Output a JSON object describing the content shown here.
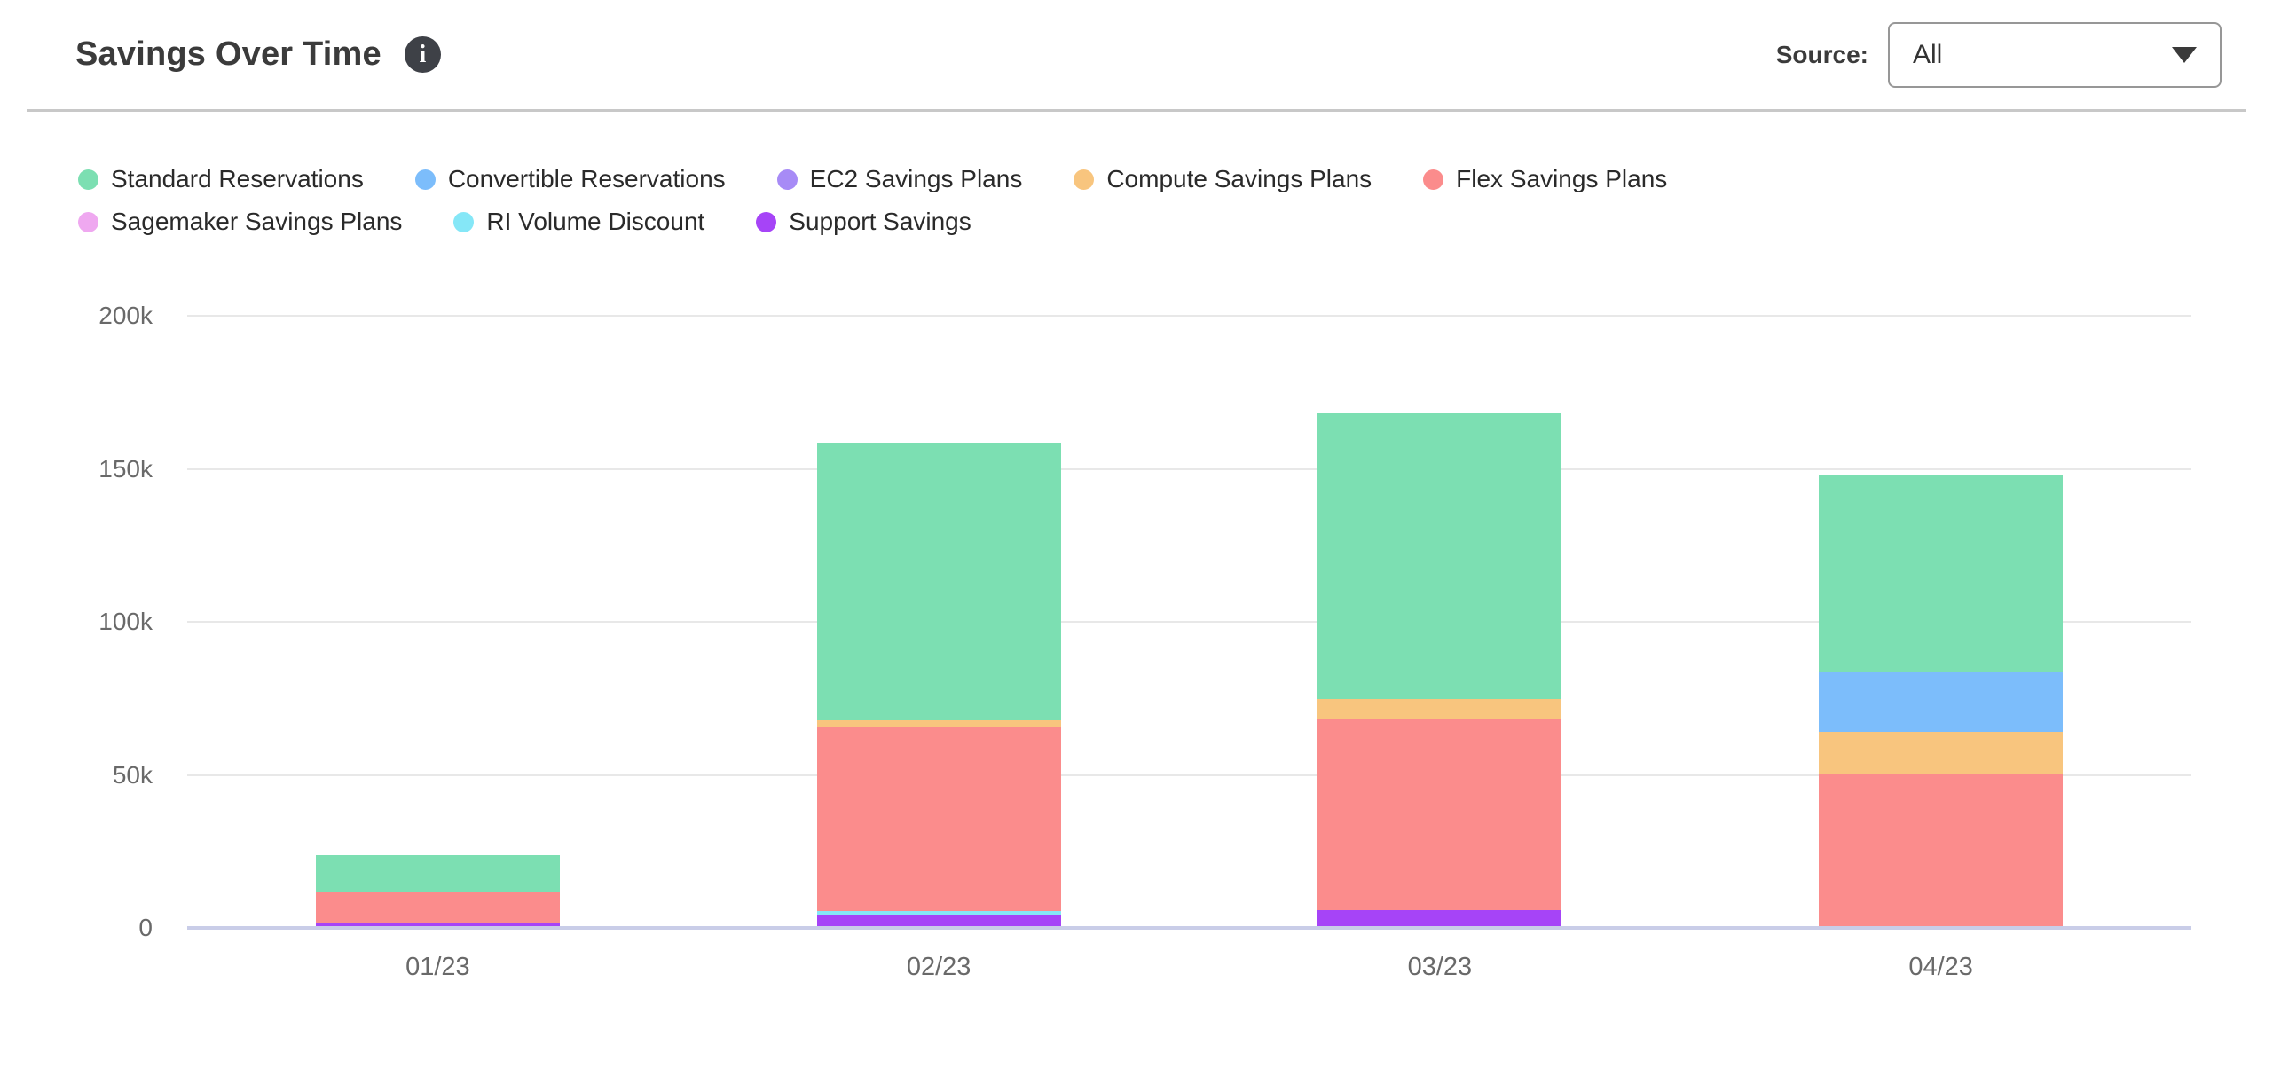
{
  "header": {
    "title": "Savings Over Time",
    "info_icon": "i",
    "source_label": "Source:",
    "source_value": "All"
  },
  "chart_data": {
    "type": "bar",
    "stacked": true,
    "title": "Savings Over Time",
    "unit": "thousands (k)",
    "categories": [
      "01/23",
      "02/23",
      "03/23",
      "04/23"
    ],
    "series": [
      {
        "name": "Standard Reservations",
        "color": "#7cdfb2",
        "values": [
          12.4,
          90.8,
          93.2,
          64.4
        ]
      },
      {
        "name": "Convertible Reservations",
        "color": "#7cbdfb",
        "values": [
          0,
          0,
          0,
          19.3
        ]
      },
      {
        "name": "EC2 Savings Plans",
        "color": "#a78bf6",
        "values": [
          0,
          0,
          0,
          0
        ]
      },
      {
        "name": "Compute Savings Plans",
        "color": "#f8c57e",
        "values": [
          0,
          2.0,
          6.7,
          13.9
        ]
      },
      {
        "name": "Flex Savings Plans",
        "color": "#fb8c8c",
        "values": [
          9.9,
          60.2,
          62.4,
          49.6
        ]
      },
      {
        "name": "Sagemaker Savings Plans",
        "color": "#efa8f0",
        "values": [
          0,
          0,
          0,
          0
        ]
      },
      {
        "name": "RI Volume Discount",
        "color": "#85e7f7",
        "values": [
          0,
          1.2,
          0,
          0
        ]
      },
      {
        "name": "Support Savings",
        "color": "#a644f7",
        "values": [
          1.0,
          3.8,
          5.1,
          0
        ]
      }
    ],
    "totals": [
      23.3,
      158.0,
      167.4,
      147.2
    ],
    "stack_order_bottom_to_top": [
      "Support Savings",
      "RI Volume Discount",
      "Sagemaker Savings Plans",
      "Flex Savings Plans",
      "Compute Savings Plans",
      "EC2 Savings Plans",
      "Convertible Reservations",
      "Standard Reservations"
    ],
    "y_axis": {
      "tick_labels": [
        "200k",
        "150k",
        "100k",
        "50k",
        "0"
      ],
      "tick_values": [
        200,
        150,
        100,
        50,
        0
      ],
      "min": 0,
      "max": 200
    },
    "xlabel": "",
    "ylabel": "",
    "grid": true,
    "legend_position": "top",
    "colors": {
      "gridline": "#e8e8e8",
      "zero_axis": "#c9cde8",
      "tick_text": "#696969"
    }
  }
}
